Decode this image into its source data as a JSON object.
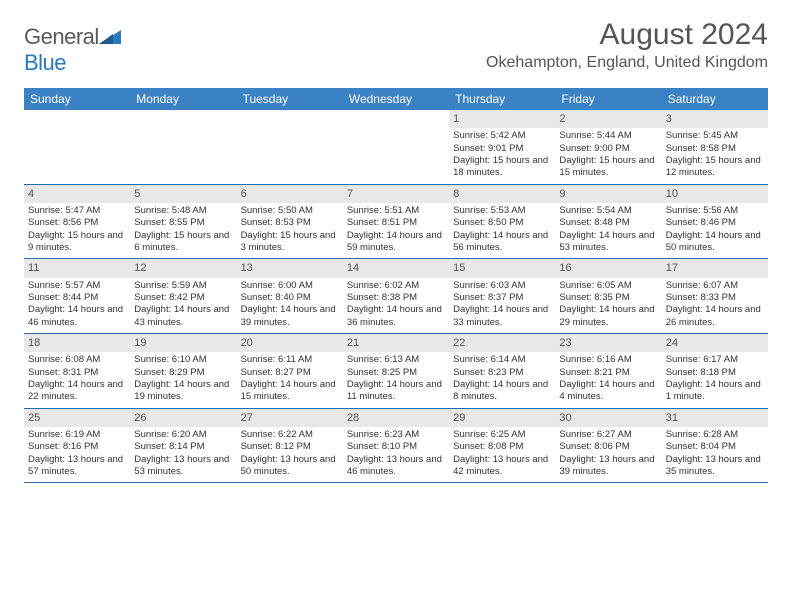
{
  "logo": {
    "word1": "General",
    "word2": "Blue"
  },
  "header": {
    "month": "August 2024",
    "location": "Okehampton, England, United Kingdom"
  },
  "colors": {
    "header_bar": "#3a82c4",
    "day_num_bg": "#e8e8e8",
    "week_border": "#2a6aa8",
    "logo_gray": "#5a5a5a",
    "logo_blue": "#2a7ab8",
    "text": "#333333"
  },
  "dow": [
    "Sunday",
    "Monday",
    "Tuesday",
    "Wednesday",
    "Thursday",
    "Friday",
    "Saturday"
  ],
  "weeks": [
    [
      {
        "num": "",
        "sunrise": "",
        "sunset": "",
        "daylight": ""
      },
      {
        "num": "",
        "sunrise": "",
        "sunset": "",
        "daylight": ""
      },
      {
        "num": "",
        "sunrise": "",
        "sunset": "",
        "daylight": ""
      },
      {
        "num": "",
        "sunrise": "",
        "sunset": "",
        "daylight": ""
      },
      {
        "num": "1",
        "sunrise": "Sunrise: 5:42 AM",
        "sunset": "Sunset: 9:01 PM",
        "daylight": "Daylight: 15 hours and 18 minutes."
      },
      {
        "num": "2",
        "sunrise": "Sunrise: 5:44 AM",
        "sunset": "Sunset: 9:00 PM",
        "daylight": "Daylight: 15 hours and 15 minutes."
      },
      {
        "num": "3",
        "sunrise": "Sunrise: 5:45 AM",
        "sunset": "Sunset: 8:58 PM",
        "daylight": "Daylight: 15 hours and 12 minutes."
      }
    ],
    [
      {
        "num": "4",
        "sunrise": "Sunrise: 5:47 AM",
        "sunset": "Sunset: 8:56 PM",
        "daylight": "Daylight: 15 hours and 9 minutes."
      },
      {
        "num": "5",
        "sunrise": "Sunrise: 5:48 AM",
        "sunset": "Sunset: 8:55 PM",
        "daylight": "Daylight: 15 hours and 6 minutes."
      },
      {
        "num": "6",
        "sunrise": "Sunrise: 5:50 AM",
        "sunset": "Sunset: 8:53 PM",
        "daylight": "Daylight: 15 hours and 3 minutes."
      },
      {
        "num": "7",
        "sunrise": "Sunrise: 5:51 AM",
        "sunset": "Sunset: 8:51 PM",
        "daylight": "Daylight: 14 hours and 59 minutes."
      },
      {
        "num": "8",
        "sunrise": "Sunrise: 5:53 AM",
        "sunset": "Sunset: 8:50 PM",
        "daylight": "Daylight: 14 hours and 56 minutes."
      },
      {
        "num": "9",
        "sunrise": "Sunrise: 5:54 AM",
        "sunset": "Sunset: 8:48 PM",
        "daylight": "Daylight: 14 hours and 53 minutes."
      },
      {
        "num": "10",
        "sunrise": "Sunrise: 5:56 AM",
        "sunset": "Sunset: 8:46 PM",
        "daylight": "Daylight: 14 hours and 50 minutes."
      }
    ],
    [
      {
        "num": "11",
        "sunrise": "Sunrise: 5:57 AM",
        "sunset": "Sunset: 8:44 PM",
        "daylight": "Daylight: 14 hours and 46 minutes."
      },
      {
        "num": "12",
        "sunrise": "Sunrise: 5:59 AM",
        "sunset": "Sunset: 8:42 PM",
        "daylight": "Daylight: 14 hours and 43 minutes."
      },
      {
        "num": "13",
        "sunrise": "Sunrise: 6:00 AM",
        "sunset": "Sunset: 8:40 PM",
        "daylight": "Daylight: 14 hours and 39 minutes."
      },
      {
        "num": "14",
        "sunrise": "Sunrise: 6:02 AM",
        "sunset": "Sunset: 8:38 PM",
        "daylight": "Daylight: 14 hours and 36 minutes."
      },
      {
        "num": "15",
        "sunrise": "Sunrise: 6:03 AM",
        "sunset": "Sunset: 8:37 PM",
        "daylight": "Daylight: 14 hours and 33 minutes."
      },
      {
        "num": "16",
        "sunrise": "Sunrise: 6:05 AM",
        "sunset": "Sunset: 8:35 PM",
        "daylight": "Daylight: 14 hours and 29 minutes."
      },
      {
        "num": "17",
        "sunrise": "Sunrise: 6:07 AM",
        "sunset": "Sunset: 8:33 PM",
        "daylight": "Daylight: 14 hours and 26 minutes."
      }
    ],
    [
      {
        "num": "18",
        "sunrise": "Sunrise: 6:08 AM",
        "sunset": "Sunset: 8:31 PM",
        "daylight": "Daylight: 14 hours and 22 minutes."
      },
      {
        "num": "19",
        "sunrise": "Sunrise: 6:10 AM",
        "sunset": "Sunset: 8:29 PM",
        "daylight": "Daylight: 14 hours and 19 minutes."
      },
      {
        "num": "20",
        "sunrise": "Sunrise: 6:11 AM",
        "sunset": "Sunset: 8:27 PM",
        "daylight": "Daylight: 14 hours and 15 minutes."
      },
      {
        "num": "21",
        "sunrise": "Sunrise: 6:13 AM",
        "sunset": "Sunset: 8:25 PM",
        "daylight": "Daylight: 14 hours and 11 minutes."
      },
      {
        "num": "22",
        "sunrise": "Sunrise: 6:14 AM",
        "sunset": "Sunset: 8:23 PM",
        "daylight": "Daylight: 14 hours and 8 minutes."
      },
      {
        "num": "23",
        "sunrise": "Sunrise: 6:16 AM",
        "sunset": "Sunset: 8:21 PM",
        "daylight": "Daylight: 14 hours and 4 minutes."
      },
      {
        "num": "24",
        "sunrise": "Sunrise: 6:17 AM",
        "sunset": "Sunset: 8:18 PM",
        "daylight": "Daylight: 14 hours and 1 minute."
      }
    ],
    [
      {
        "num": "25",
        "sunrise": "Sunrise: 6:19 AM",
        "sunset": "Sunset: 8:16 PM",
        "daylight": "Daylight: 13 hours and 57 minutes."
      },
      {
        "num": "26",
        "sunrise": "Sunrise: 6:20 AM",
        "sunset": "Sunset: 8:14 PM",
        "daylight": "Daylight: 13 hours and 53 minutes."
      },
      {
        "num": "27",
        "sunrise": "Sunrise: 6:22 AM",
        "sunset": "Sunset: 8:12 PM",
        "daylight": "Daylight: 13 hours and 50 minutes."
      },
      {
        "num": "28",
        "sunrise": "Sunrise: 6:23 AM",
        "sunset": "Sunset: 8:10 PM",
        "daylight": "Daylight: 13 hours and 46 minutes."
      },
      {
        "num": "29",
        "sunrise": "Sunrise: 6:25 AM",
        "sunset": "Sunset: 8:08 PM",
        "daylight": "Daylight: 13 hours and 42 minutes."
      },
      {
        "num": "30",
        "sunrise": "Sunrise: 6:27 AM",
        "sunset": "Sunset: 8:06 PM",
        "daylight": "Daylight: 13 hours and 39 minutes."
      },
      {
        "num": "31",
        "sunrise": "Sunrise: 6:28 AM",
        "sunset": "Sunset: 8:04 PM",
        "daylight": "Daylight: 13 hours and 35 minutes."
      }
    ]
  ]
}
